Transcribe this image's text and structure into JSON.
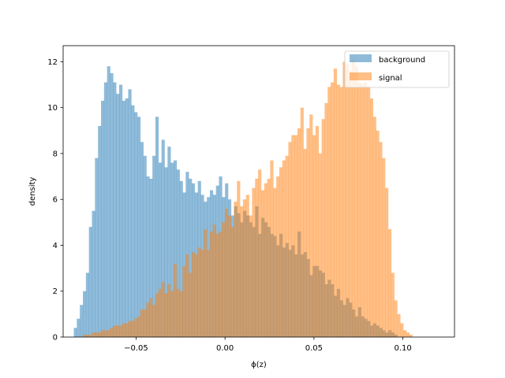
{
  "chart_data": {
    "type": "bar",
    "subtype": "overlapping-histogram",
    "xlabel": "ϕ(z)",
    "ylabel": "density",
    "xlim": [
      -0.091,
      0.129
    ],
    "ylim": [
      0,
      12.7
    ],
    "xticks": [
      -0.05,
      0.0,
      0.05,
      0.1
    ],
    "xtick_labels": [
      "−0.05",
      "0.00",
      "0.05",
      "0.10"
    ],
    "yticks": [
      0,
      2,
      4,
      6,
      8,
      10,
      12
    ],
    "ytick_labels": [
      "0",
      "2",
      "4",
      "6",
      "8",
      "10",
      "12"
    ],
    "bin_width": 0.0017,
    "legend": {
      "placement": "top-right"
    },
    "grid": false,
    "series": [
      {
        "name": "background",
        "color": "#1f77b4",
        "opacity": 0.5,
        "bin_start": -0.085,
        "values": [
          0.4,
          0.8,
          1.4,
          2.0,
          2.8,
          4.8,
          5.5,
          7.8,
          9.2,
          10.3,
          11.1,
          11.8,
          11.5,
          11.1,
          10.6,
          11.0,
          10.3,
          10.4,
          10.8,
          10.1,
          9.8,
          9.6,
          8.5,
          7.9,
          7.0,
          6.9,
          7.9,
          9.6,
          7.6,
          8.6,
          7.4,
          8.3,
          7.6,
          7.7,
          7.3,
          6.8,
          6.3,
          7.2,
          6.9,
          6.7,
          6.3,
          6.8,
          6.2,
          5.9,
          6.1,
          6.4,
          6.2,
          6.6,
          7.0,
          6.1,
          6.7,
          6.0,
          5.3,
          5.7,
          5.4,
          5.0,
          5.5,
          5.3,
          5.0,
          4.8,
          5.7,
          4.5,
          5.2,
          5.0,
          4.8,
          4.5,
          4.4,
          4.0,
          4.5,
          3.9,
          4.1,
          3.8,
          4.0,
          3.6,
          4.6,
          3.6,
          3.7,
          3.4,
          2.7,
          3.1,
          3.1,
          2.9,
          2.8,
          2.3,
          2.5,
          2.3,
          1.8,
          2.1,
          1.6,
          1.4,
          1.7,
          1.5,
          1.2,
          0.9,
          1.3,
          0.9,
          0.8,
          0.7,
          0.5,
          0.6,
          0.5,
          0.4,
          0.3,
          0.2,
          0.3,
          0.2,
          0.1
        ]
      },
      {
        "name": "signal",
        "color": "#ff7f0e",
        "opacity": 0.5,
        "bin_start": -0.08,
        "values": [
          0.1,
          0.1,
          0.1,
          0.2,
          0.2,
          0.2,
          0.3,
          0.3,
          0.3,
          0.4,
          0.5,
          0.5,
          0.5,
          0.6,
          0.6,
          0.7,
          0.7,
          0.8,
          0.9,
          1.2,
          1.2,
          1.5,
          1.7,
          1.4,
          1.9,
          2.1,
          2.4,
          1.9,
          2.3,
          2.0,
          3.2,
          2.1,
          2.0,
          3.1,
          3.6,
          2.8,
          3.7,
          3.6,
          3.9,
          3.8,
          4.7,
          3.8,
          4.6,
          4.9,
          4.5,
          4.6,
          5.0,
          5.6,
          5.3,
          4.8,
          5.9,
          6.8,
          5.7,
          6.0,
          6.2,
          5.3,
          6.5,
          6.9,
          7.3,
          6.4,
          6.7,
          6.9,
          7.7,
          6.5,
          7.0,
          7.4,
          7.7,
          7.9,
          8.5,
          8.8,
          8.8,
          9.1,
          10.0,
          8.2,
          9.1,
          9.7,
          8.8,
          9.2,
          8.0,
          9.5,
          10.2,
          10.9,
          11.1,
          11.7,
          11.0,
          10.9,
          12.0,
          11.9,
          11.6,
          12.1,
          11.8,
          11.1,
          11.0,
          11.1,
          10.9,
          10.4,
          9.6,
          9.0,
          8.5,
          7.8,
          6.5,
          4.7,
          2.8,
          1.6,
          1.0,
          0.6,
          0.3,
          0.2,
          0.1
        ]
      }
    ]
  }
}
